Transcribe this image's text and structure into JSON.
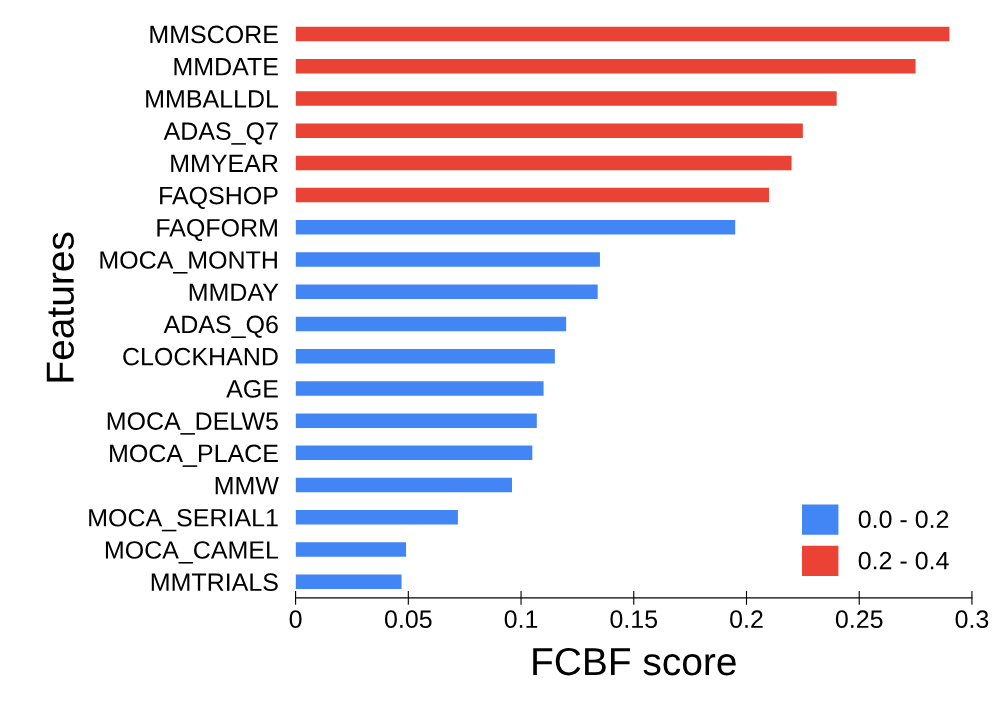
{
  "chart_data": {
    "type": "bar",
    "orientation": "horizontal",
    "xlabel": "FCBF score",
    "ylabel": "Features",
    "categories": [
      "MMSCORE",
      "MMDATE",
      "MMBALLDL",
      "ADAS_Q7",
      "MMYEAR",
      "FAQSHOP",
      "FAQFORM",
      "MOCA_MONTH",
      "MMDAY",
      "ADAS_Q6",
      "CLOCKHAND",
      "AGE",
      "MOCA_DELW5",
      "MOCA_PLACE",
      "MMW",
      "MOCA_SERIAL1",
      "MOCA_CAMEL",
      "MMTRIALS"
    ],
    "series": [
      {
        "name": "0.0 - 0.2",
        "color": "#4285f4",
        "values": [
          null,
          null,
          null,
          null,
          null,
          null,
          0.195,
          0.135,
          0.134,
          0.12,
          0.115,
          0.11,
          0.107,
          0.105,
          0.096,
          0.072,
          0.049,
          0.047
        ]
      },
      {
        "name": "0.2 - 0.4",
        "color": "#ea4335",
        "values": [
          0.29,
          0.275,
          0.24,
          0.225,
          0.22,
          0.21,
          null,
          null,
          null,
          null,
          null,
          null,
          null,
          null,
          null,
          null,
          null,
          null
        ]
      }
    ],
    "xlim": [
      0,
      0.3
    ],
    "xticks": [
      0,
      0.05,
      0.1,
      0.15,
      0.2,
      0.25,
      0.3
    ],
    "grid": false,
    "legend": "bottom right"
  }
}
